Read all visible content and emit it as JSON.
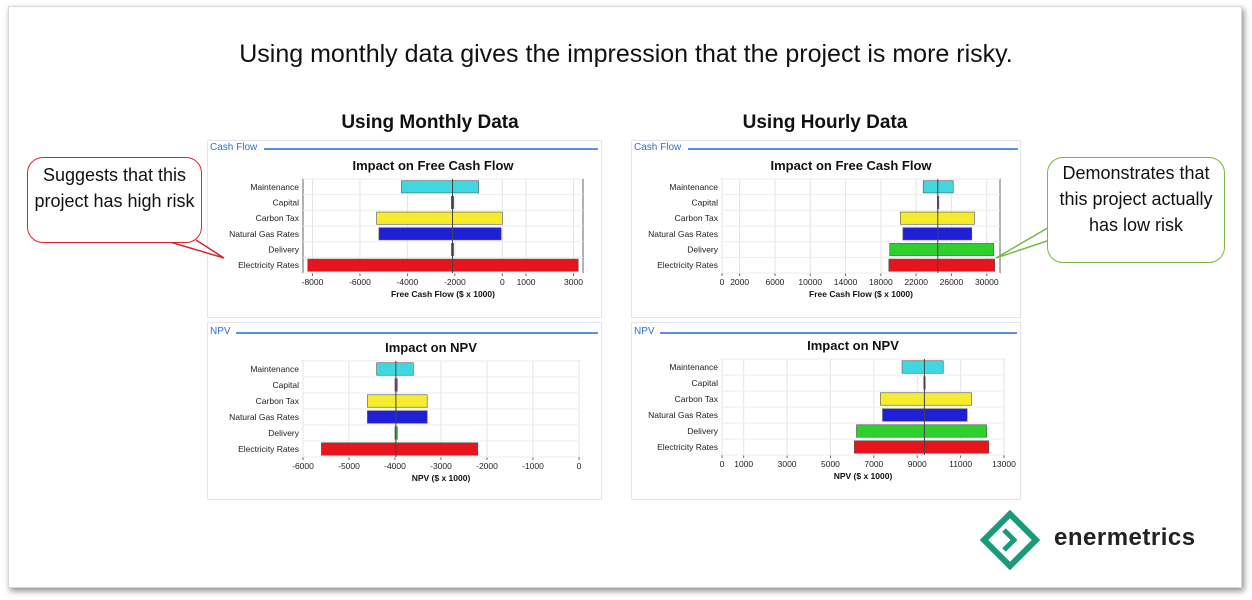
{
  "slide": {
    "title": "Using monthly data gives the impression that the project is more risky."
  },
  "sections": {
    "monthly": "Using Monthly Data",
    "hourly": "Using Hourly Data"
  },
  "panels": {
    "cash_flow_tab": "Cash Flow",
    "npv_tab": "NPV"
  },
  "callouts": {
    "left": "Suggests that this project has high risk",
    "right": "Demonstrates that this project actually has low risk",
    "left_color": "#d9262c",
    "right_color": "#7ab648"
  },
  "logo": {
    "text": "enermetrics",
    "color": "#1a9a7a"
  },
  "colors": {
    "Maintenance": "#3fd8e0",
    "Capital": "#b0309a",
    "Carbon Tax": "#f4ec2c",
    "Natural Gas Rates": "#1f1fd8",
    "Delivery": "#2ed02e",
    "Electricity Rates": "#e8141c"
  },
  "chart_data": [
    {
      "id": "monthly-fcf",
      "type": "bar",
      "title": "Impact on Free Cash Flow",
      "xlabel": "Free Cash Flow ($ x 1000)",
      "categories": [
        "Maintenance",
        "Capital",
        "Carbon Tax",
        "Natural Gas Rates",
        "Delivery",
        "Electricity Rates"
      ],
      "ranges": [
        [
          -4250,
          -1000
        ],
        [
          -2150,
          -2050
        ],
        [
          -5300,
          0
        ],
        [
          -5200,
          -50
        ],
        [
          -2150,
          -2050
        ],
        [
          -8200,
          3200
        ]
      ],
      "base": -2100,
      "xlim": [
        -8400,
        3400
      ],
      "ticks": [
        -8000,
        -6000,
        -4000,
        -2000,
        0,
        1000,
        3000
      ],
      "tick_labels": [
        "-8000",
        "-6000",
        "-4000",
        "-2000",
        "0",
        "1000",
        "3000"
      ]
    },
    {
      "id": "monthly-npv",
      "type": "bar",
      "title": "Impact on NPV",
      "xlabel": "NPV ($ x 1000)",
      "categories": [
        "Maintenance",
        "Capital",
        "Carbon Tax",
        "Natural Gas Rates",
        "Delivery",
        "Electricity Rates"
      ],
      "ranges": [
        [
          -4400,
          -3600
        ],
        [
          -4000,
          -3950
        ],
        [
          -4600,
          -3300
        ],
        [
          -4600,
          -3300
        ],
        [
          -4000,
          -3950
        ],
        [
          -5600,
          -2200
        ]
      ],
      "base": -3980,
      "xlim": [
        -6000,
        0
      ],
      "ticks": [
        -6000,
        -5000,
        -4000,
        -3000,
        -2000,
        -1000,
        0
      ],
      "tick_labels": [
        "-6000",
        "-5000",
        "-4000",
        "-3000",
        "-2000",
        "-1000",
        "0"
      ]
    },
    {
      "id": "hourly-fcf",
      "type": "bar",
      "title": "Impact on Free Cash Flow",
      "xlabel": "Free Cash Flow ($ x 1000)",
      "categories": [
        "Maintenance",
        "Capital",
        "Carbon Tax",
        "Natural Gas Rates",
        "Delivery",
        "Electricity Rates"
      ],
      "ranges": [
        [
          22800,
          26200
        ],
        [
          24400,
          24500
        ],
        [
          20200,
          28600
        ],
        [
          20500,
          28300
        ],
        [
          19000,
          30800
        ],
        [
          18900,
          30900
        ]
      ],
      "base": 24450,
      "xlim": [
        0,
        31500
      ],
      "ticks": [
        0,
        2000,
        6000,
        10000,
        14000,
        18000,
        22000,
        26000,
        30000
      ],
      "tick_labels": [
        "0",
        "2000",
        "6000",
        "10000",
        "14000",
        "18000",
        "22000",
        "26000",
        "30000"
      ]
    },
    {
      "id": "hourly-npv",
      "type": "bar",
      "title": "Impact on NPV",
      "xlabel": "NPV ($ x 1000)",
      "categories": [
        "Maintenance",
        "Capital",
        "Carbon Tax",
        "Natural Gas Rates",
        "Delivery",
        "Electricity Rates"
      ],
      "ranges": [
        [
          8300,
          10200
        ],
        [
          9300,
          9350
        ],
        [
          7300,
          11500
        ],
        [
          7400,
          11300
        ],
        [
          6200,
          12200
        ],
        [
          6100,
          12300
        ]
      ],
      "base": 9330,
      "xlim": [
        0,
        13000
      ],
      "ticks": [
        0,
        1000,
        3000,
        5000,
        7000,
        9000,
        11000,
        13000
      ],
      "tick_labels": [
        "0",
        "1000",
        "3000",
        "5000",
        "7000",
        "9000",
        "11000",
        "13000"
      ]
    }
  ]
}
